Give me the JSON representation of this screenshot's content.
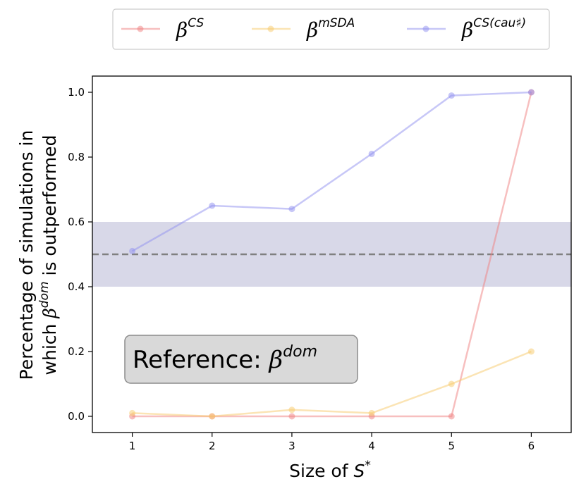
{
  "chart_data": {
    "type": "line",
    "xlabel": {
      "prefix": "Size of ",
      "sym": "S",
      "sup": "*"
    },
    "ylabel": {
      "line1": "Percentage of simulations in",
      "line2_prefix": "which ",
      "line2_sym": "β",
      "line2_sup": "dom",
      "line2_suffix": " is outperformed"
    },
    "x": [
      1,
      2,
      3,
      4,
      5,
      6
    ],
    "xlim": [
      0.5,
      6.5
    ],
    "ylim": [
      -0.05,
      1.05
    ],
    "xticks": [
      1,
      2,
      3,
      4,
      5,
      6
    ],
    "yticks": [
      0.0,
      0.2,
      0.4,
      0.6,
      0.8,
      1.0
    ],
    "ytick_labels": [
      "0.0",
      "0.2",
      "0.4",
      "0.6",
      "0.8",
      "1.0"
    ],
    "reference_line": 0.5,
    "band": [
      0.4,
      0.6
    ],
    "band_color": "#d8d8e8",
    "annotation": {
      "prefix": "Reference: ",
      "sym": "β",
      "sup": "dom"
    },
    "series": [
      {
        "name": "CS",
        "sym": "β",
        "sup": "CS",
        "color": "#f08080",
        "values": [
          0.0,
          0.0,
          0.0,
          0.0,
          0.0,
          1.0
        ]
      },
      {
        "name": "mSDA",
        "sym": "β",
        "sup": "mSDA",
        "color": "#f7c96a",
        "values": [
          0.01,
          0.0,
          0.02,
          0.01,
          0.1,
          0.2
        ]
      },
      {
        "name": "CS(cau♯)",
        "sym": "β",
        "sup": "CS(cau♯)",
        "color": "#8f8ff0",
        "values": [
          0.51,
          0.65,
          0.64,
          0.81,
          0.99,
          1.0
        ]
      }
    ]
  }
}
